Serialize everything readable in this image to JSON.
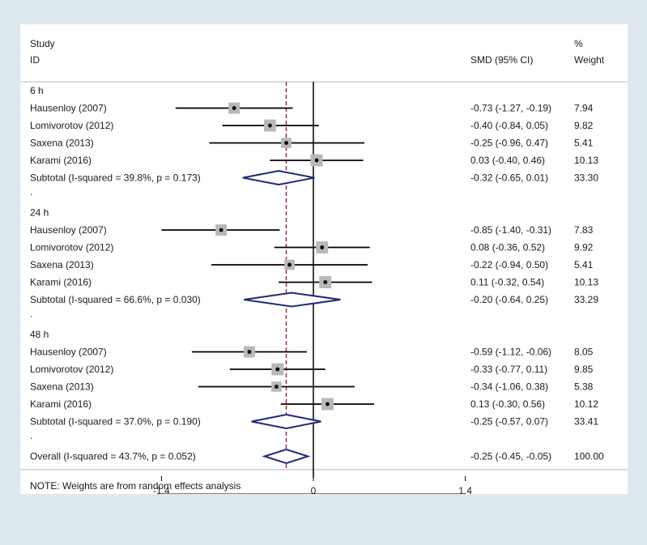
{
  "chart_data": {
    "type": "forest",
    "header": {
      "study": "Study",
      "id": "ID",
      "smd": "SMD (95% CI)",
      "pct": "%",
      "weight": "Weight"
    },
    "xlim": [
      -2.0,
      2.0
    ],
    "x_ticks": [
      {
        "value": -1.4,
        "label": "-1.4"
      },
      {
        "value": 0,
        "label": "0"
      },
      {
        "value": 1.4,
        "label": "1.4"
      }
    ],
    "reference_line": 0,
    "overall_effect_line": -0.25,
    "groups": [
      {
        "label": "6 h",
        "studies": [
          {
            "name": "Hausenloy (2007)",
            "smd": -0.73,
            "lo": -1.27,
            "hi": -0.19,
            "ci_text": "-0.73 (-1.27, -0.19)",
            "weight": 7.94,
            "weight_text": "7.94"
          },
          {
            "name": "Lomivorotov (2012)",
            "smd": -0.4,
            "lo": -0.84,
            "hi": 0.05,
            "ci_text": "-0.40 (-0.84, 0.05)",
            "weight": 9.82,
            "weight_text": "9.82"
          },
          {
            "name": "Saxena (2013)",
            "smd": -0.25,
            "lo": -0.96,
            "hi": 0.47,
            "ci_text": "-0.25 (-0.96, 0.47)",
            "weight": 5.41,
            "weight_text": "5.41"
          },
          {
            "name": "Karami (2016)",
            "smd": 0.03,
            "lo": -0.4,
            "hi": 0.46,
            "ci_text": "0.03 (-0.40, 0.46)",
            "weight": 10.13,
            "weight_text": "10.13"
          }
        ],
        "subtotal": {
          "label": "Subtotal  (I-squared = 39.8%, p = 0.173)",
          "smd": -0.32,
          "lo": -0.65,
          "hi": 0.01,
          "ci_text": "-0.32 (-0.65, 0.01)",
          "weight_text": "33.30"
        }
      },
      {
        "label": "24 h",
        "studies": [
          {
            "name": "Hausenloy (2007)",
            "smd": -0.85,
            "lo": -1.4,
            "hi": -0.31,
            "ci_text": "-0.85 (-1.40, -0.31)",
            "weight": 7.83,
            "weight_text": "7.83"
          },
          {
            "name": "Lomivorotov (2012)",
            "smd": 0.08,
            "lo": -0.36,
            "hi": 0.52,
            "ci_text": "0.08 (-0.36, 0.52)",
            "weight": 9.92,
            "weight_text": "9.92"
          },
          {
            "name": "Saxena (2013)",
            "smd": -0.22,
            "lo": -0.94,
            "hi": 0.5,
            "ci_text": "-0.22 (-0.94, 0.50)",
            "weight": 5.41,
            "weight_text": "5.41"
          },
          {
            "name": "Karami (2016)",
            "smd": 0.11,
            "lo": -0.32,
            "hi": 0.54,
            "ci_text": "0.11 (-0.32, 0.54)",
            "weight": 10.13,
            "weight_text": "10.13"
          }
        ],
        "subtotal": {
          "label": "Subtotal  (I-squared = 66.6%, p = 0.030)",
          "smd": -0.2,
          "lo": -0.64,
          "hi": 0.25,
          "ci_text": "-0.20 (-0.64, 0.25)",
          "weight_text": "33.29"
        }
      },
      {
        "label": "48 h",
        "studies": [
          {
            "name": "Hausenloy (2007)",
            "smd": -0.59,
            "lo": -1.12,
            "hi": -0.06,
            "ci_text": "-0.59 (-1.12, -0.06)",
            "weight": 8.05,
            "weight_text": "8.05"
          },
          {
            "name": "Lomivorotov (2012)",
            "smd": -0.33,
            "lo": -0.77,
            "hi": 0.11,
            "ci_text": "-0.33 (-0.77, 0.11)",
            "weight": 9.85,
            "weight_text": "9.85"
          },
          {
            "name": "Saxena (2013)",
            "smd": -0.34,
            "lo": -1.06,
            "hi": 0.38,
            "ci_text": "-0.34 (-1.06, 0.38)",
            "weight": 5.38,
            "weight_text": "5.38"
          },
          {
            "name": "Karami (2016)",
            "smd": 0.13,
            "lo": -0.3,
            "hi": 0.56,
            "ci_text": "0.13 (-0.30, 0.56)",
            "weight": 10.12,
            "weight_text": "10.12"
          }
        ],
        "subtotal": {
          "label": "Subtotal  (I-squared = 37.0%, p = 0.190)",
          "smd": -0.25,
          "lo": -0.57,
          "hi": 0.07,
          "ci_text": "-0.25 (-0.57, 0.07)",
          "weight_text": "33.41"
        }
      }
    ],
    "overall": {
      "label": "Overall  (I-squared = 43.7%, p = 0.052)",
      "smd": -0.25,
      "lo": -0.45,
      "hi": -0.05,
      "ci_text": "-0.25 (-0.45, -0.05)",
      "weight_text": "100.00"
    },
    "separator": ".",
    "note": "NOTE: Weights are from random effects analysis",
    "colors": {
      "diamond": "#1f2a78",
      "overall_line": "#9b2335",
      "marker_box": "#b8b8b8",
      "ci_line": "#000000"
    }
  }
}
